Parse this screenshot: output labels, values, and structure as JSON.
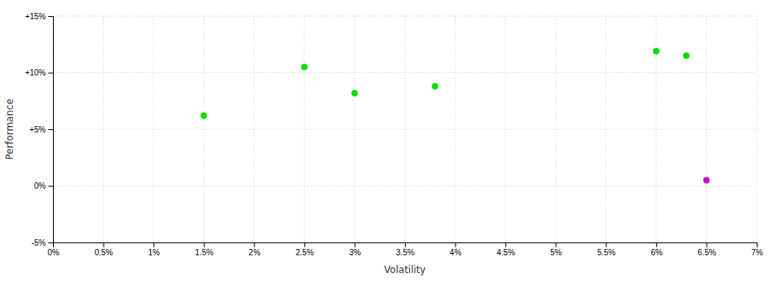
{
  "chart_data": {
    "type": "scatter",
    "xlabel": "Volatility",
    "ylabel": "Performance",
    "xlim": [
      0,
      0.07
    ],
    "ylim": [
      -0.05,
      0.15
    ],
    "xticks": [
      {
        "value": 0.0,
        "label": "0%"
      },
      {
        "value": 0.005,
        "label": "0.5%"
      },
      {
        "value": 0.01,
        "label": "1%"
      },
      {
        "value": 0.015,
        "label": "1.5%"
      },
      {
        "value": 0.02,
        "label": "2%"
      },
      {
        "value": 0.025,
        "label": "2.5%"
      },
      {
        "value": 0.03,
        "label": "3%"
      },
      {
        "value": 0.035,
        "label": "3.5%"
      },
      {
        "value": 0.04,
        "label": "4%"
      },
      {
        "value": 0.045,
        "label": "4.5%"
      },
      {
        "value": 0.05,
        "label": "5%"
      },
      {
        "value": 0.055,
        "label": "5.5%"
      },
      {
        "value": 0.06,
        "label": "6%"
      },
      {
        "value": 0.065,
        "label": "6.5%"
      },
      {
        "value": 0.07,
        "label": "7%"
      }
    ],
    "yticks": [
      {
        "value": -0.05,
        "label": "-5%"
      },
      {
        "value": 0.0,
        "label": "0%"
      },
      {
        "value": 0.05,
        "label": "+5%"
      },
      {
        "value": 0.1,
        "label": "+10%"
      },
      {
        "value": 0.15,
        "label": "+15%"
      }
    ],
    "grid": true,
    "series": [
      {
        "color": "#00dd00",
        "x": [
          0.015,
          0.025,
          0.03,
          0.038,
          0.06,
          0.063
        ],
        "values": [
          0.062,
          0.105,
          0.082,
          0.088,
          0.119,
          0.115
        ]
      },
      {
        "color": "#cc00cc",
        "x": [
          0.065
        ],
        "values": [
          0.005
        ]
      }
    ]
  }
}
